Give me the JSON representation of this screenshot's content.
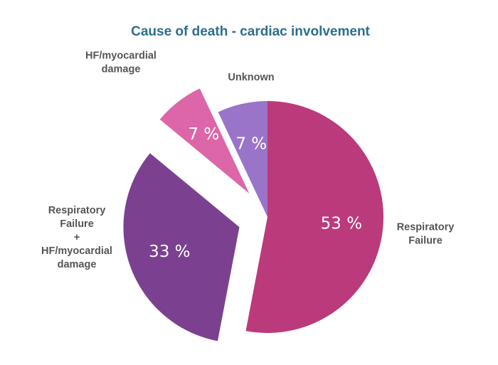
{
  "chart_data": {
    "type": "pie",
    "title": "Cause of death - cardiac involvement",
    "value_suffix": " %",
    "legend": "none",
    "slices": [
      {
        "label_lines": [
          "Respiratory",
          "Failure"
        ],
        "value": 53,
        "color": "#bb3a7b",
        "exploded": false
      },
      {
        "label_lines": [
          "Respiratory",
          "Failure",
          "+",
          "HF/myocardial",
          "damage"
        ],
        "value": 33,
        "color": "#7b4190",
        "exploded": true
      },
      {
        "label_lines": [
          "HF/myocardial",
          "damage"
        ],
        "value": 7,
        "color": "#dd66a8",
        "exploded": true
      },
      {
        "label_lines": [
          "Unknown"
        ],
        "value": 7,
        "color": "#9a74c8",
        "exploded": false
      }
    ]
  }
}
